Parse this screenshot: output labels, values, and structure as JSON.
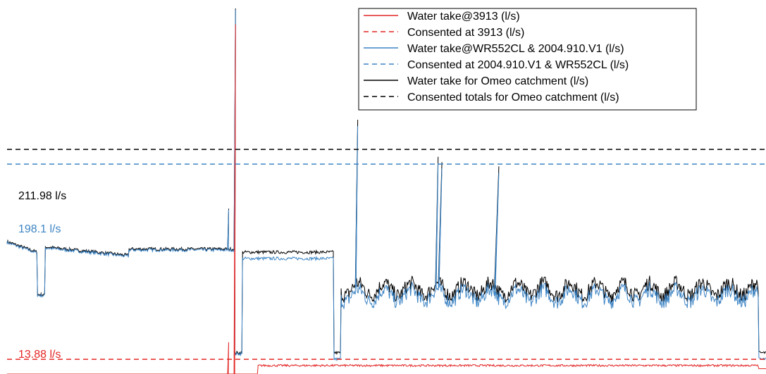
{
  "chart_data": {
    "type": "line",
    "title": "",
    "xlabel": "",
    "ylabel": "",
    "axes_visible": false,
    "grid": false,
    "legend_placement": "top-right",
    "ylim": [
      0,
      353
    ],
    "series": [
      {
        "name": "Water take@3913 (l/s)",
        "color": "#e32726",
        "style": "solid",
        "description_values": "near zero except a single spike to ~330 l/s, then ~8-10 l/s"
      },
      {
        "name": "Consented at 3913 (l/s)",
        "color": "#e32726",
        "style": "dashed",
        "value": 13.88
      },
      {
        "name": "Water take@WR552CL & 2004.910.V1 (l/s)",
        "color": "#3d84c4",
        "style": "solid"
      },
      {
        "name": "Consented at 2004.910.V1 & WR552CL (l/s)",
        "color": "#3d84c4",
        "style": "dashed",
        "value": 198.1
      },
      {
        "name": "Water take for Omeo catchment (l/s)",
        "color": "#000000",
        "style": "solid"
      },
      {
        "name": "Consented totals for Omeo catchment (l/s)",
        "color": "#000000",
        "style": "dashed",
        "value": 211.98
      }
    ],
    "annotations": [
      {
        "text": "211.98 l/s",
        "color": "#000000",
        "value": 211.98
      },
      {
        "text": "198.1 l/s",
        "color": "#3d84c4",
        "value": 198.1
      },
      {
        "text": "13.88 l/s",
        "color": "#e32726",
        "value": 13.88
      }
    ],
    "approx_total_profile": {
      "x_range": [
        0,
        1
      ],
      "baseline_levels": [
        {
          "x": [
            0.0,
            0.04
          ],
          "value": 125
        },
        {
          "x": [
            0.04,
            0.05
          ],
          "value": 75
        },
        {
          "x": [
            0.05,
            0.16
          ],
          "value": 120
        },
        {
          "x": [
            0.16,
            0.3
          ],
          "value": 118
        },
        {
          "x": [
            0.31,
            0.43
          ],
          "value": 115
        },
        {
          "x": [
            0.44,
            0.99
          ],
          "value": 80
        },
        {
          "x": [
            0.99,
            1.0
          ],
          "value": 20
        }
      ],
      "spikes": [
        {
          "x": 0.292,
          "value": 156
        },
        {
          "x": 0.301,
          "value": 345
        },
        {
          "x": 0.462,
          "value": 240
        },
        {
          "x": 0.568,
          "value": 205
        },
        {
          "x": 0.573,
          "value": 200
        },
        {
          "x": 0.648,
          "value": 196
        }
      ]
    }
  }
}
